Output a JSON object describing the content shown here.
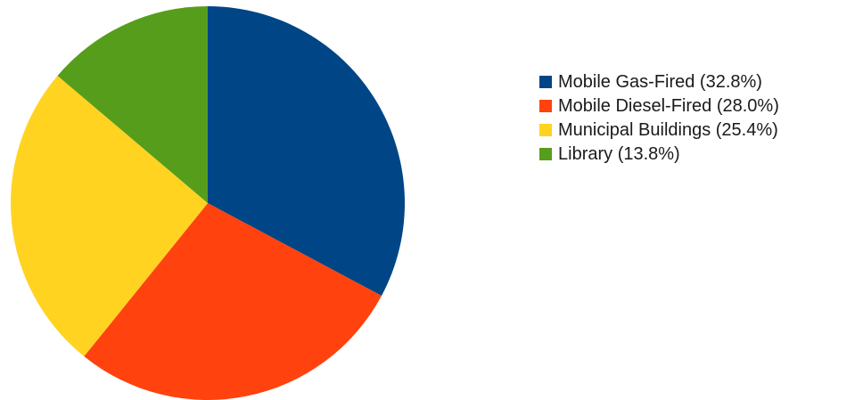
{
  "chart_data": {
    "type": "pie",
    "title": "",
    "slices": [
      {
        "label": "Mobile Gas-Fired (32.8%)",
        "value": 32.8,
        "color": "#004586"
      },
      {
        "label": "Mobile Diesel-Fired (28.0%)",
        "value": 28.0,
        "color": "#ff420e"
      },
      {
        "label": "Municipal Buildings (25.4%)",
        "value": 25.4,
        "color": "#ffd320"
      },
      {
        "label": "Library (13.8%)",
        "value": 13.8,
        "color": "#579d1c"
      }
    ],
    "start_angle": "12 o'clock",
    "direction": "clockwise",
    "legend_position": "right"
  }
}
